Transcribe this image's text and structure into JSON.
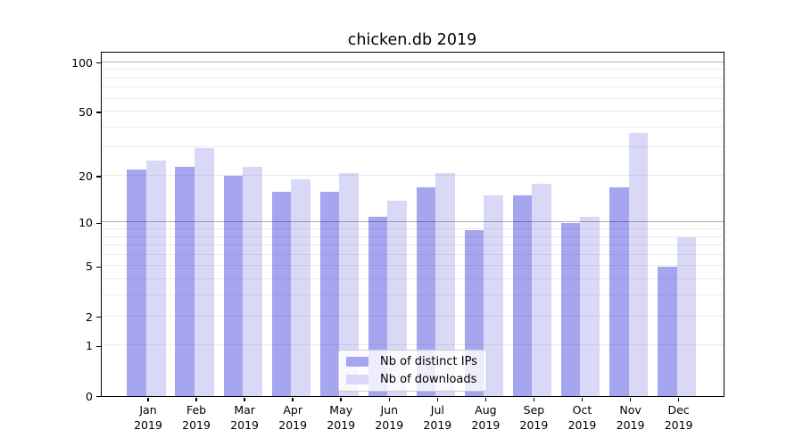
{
  "chart_data": {
    "type": "bar",
    "title": "chicken.db 2019",
    "x_tick_months": [
      "Jan",
      "Feb",
      "Mar",
      "Apr",
      "May",
      "Jun",
      "Jul",
      "Aug",
      "Sep",
      "Oct",
      "Nov",
      "Dec"
    ],
    "x_tick_year": "2019",
    "series": [
      {
        "name": "Nb of distinct IPs",
        "color": "#a6a6f0",
        "values": [
          22,
          23,
          20,
          16,
          16,
          11,
          17,
          9,
          15,
          10,
          17,
          5
        ]
      },
      {
        "name": "Nb of downloads",
        "color": "#d9d9f7",
        "values": [
          25,
          30,
          23,
          19,
          21,
          14,
          21,
          15,
          18,
          11,
          37,
          8
        ]
      }
    ],
    "y_axis": {
      "scale": "log1p",
      "tick_values": [
        0,
        1,
        2,
        5,
        10,
        20,
        50,
        100
      ],
      "range": [
        0,
        115
      ],
      "grid": true
    },
    "legend": {
      "position": "lower center"
    }
  }
}
